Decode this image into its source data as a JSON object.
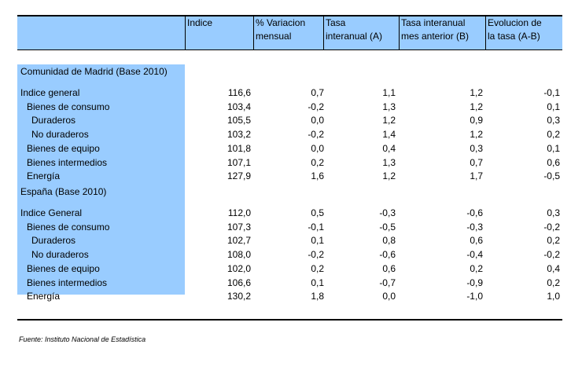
{
  "header": {
    "indice": "Indice",
    "variacion": [
      "% Variacion",
      "mensual"
    ],
    "tasa_a": [
      "Tasa",
      "interanual (A)"
    ],
    "tasa_b": [
      "Tasa interanual",
      "mes anterior (B)"
    ],
    "evolucion": [
      "Evolucion de",
      "la tasa (A-B)"
    ]
  },
  "sections": [
    {
      "title": "Comunidad de Madrid (Base 2010)",
      "rows": [
        {
          "label": "Indice general",
          "values": [
            "116,6",
            "0,7",
            "1,1",
            "1,2",
            "-0,1"
          ]
        },
        {
          "label": "Bienes de consumo",
          "values": [
            "103,4",
            "-0,2",
            "1,3",
            "1,2",
            "0,1"
          ]
        },
        {
          "label": "Duraderos",
          "values": [
            "105,5",
            "0,0",
            "1,2",
            "0,9",
            "0,3"
          ]
        },
        {
          "label": "No duraderos",
          "values": [
            "103,2",
            "-0,2",
            "1,4",
            "1,2",
            "0,2"
          ]
        },
        {
          "label": "Bienes de equipo",
          "values": [
            "101,8",
            "0,0",
            "0,4",
            "0,3",
            "0,1"
          ]
        },
        {
          "label": "Bienes intermedios",
          "values": [
            "107,1",
            "0,2",
            "1,3",
            "0,7",
            "0,6"
          ]
        },
        {
          "label": "Energía",
          "values": [
            "127,9",
            "1,6",
            "1,2",
            "1,7",
            "-0,5"
          ]
        }
      ]
    },
    {
      "title": "España (Base 2010)",
      "rows": [
        {
          "label": "Indice General",
          "values": [
            "112,0",
            "0,5",
            "-0,3",
            "-0,6",
            "0,3"
          ]
        },
        {
          "label": "Bienes de consumo",
          "values": [
            "107,3",
            "-0,1",
            "-0,5",
            "-0,3",
            "-0,2"
          ]
        },
        {
          "label": "Duraderos",
          "values": [
            "102,7",
            "0,1",
            "0,8",
            "0,6",
            "0,2"
          ]
        },
        {
          "label": "No duraderos",
          "values": [
            "108,0",
            "-0,2",
            "-0,6",
            "-0,4",
            "-0,2"
          ]
        },
        {
          "label": "Bienes de equipo",
          "values": [
            "102,0",
            "0,2",
            "0,6",
            "0,2",
            "0,4"
          ]
        },
        {
          "label": "Bienes intermedios",
          "values": [
            "106,6",
            "0,1",
            "-0,7",
            "-0,9",
            "0,2"
          ]
        },
        {
          "label": "Energía",
          "values": [
            "130,2",
            "1,8",
            "0,0",
            "-1,0",
            "1,0"
          ]
        }
      ]
    }
  ],
  "source": "Fuente: Instituto Nacional de Estadística"
}
